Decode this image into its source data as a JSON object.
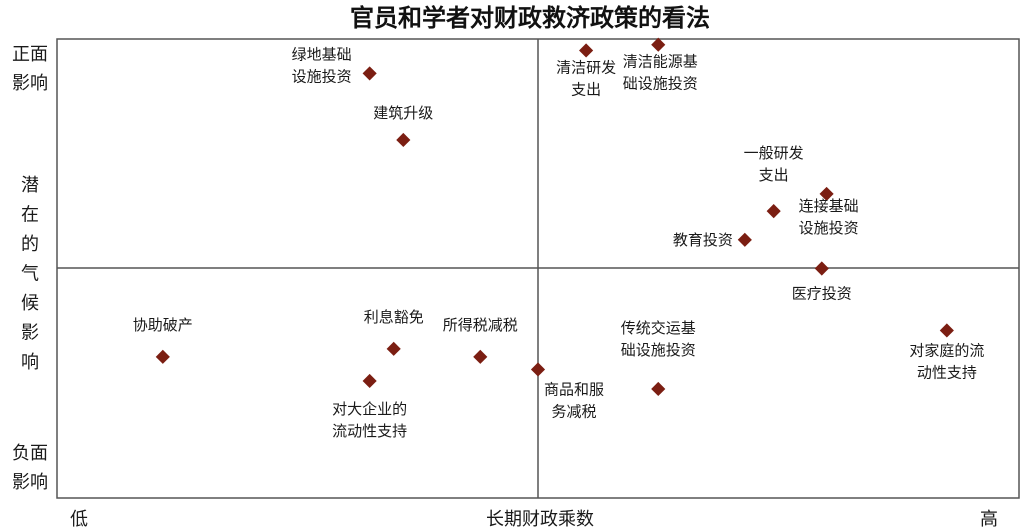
{
  "chart_data": {
    "type": "scatter",
    "title": "官员和学者对财政救济政策的看法",
    "xlabel": "长期财政乘数",
    "x_low_label": "低",
    "x_high_label": "高",
    "y_top_label": [
      "正面",
      "影响"
    ],
    "y_mid_label": [
      "潜",
      "在",
      "的",
      "气",
      "候",
      "影",
      "响"
    ],
    "y_bottom_label": [
      "负面",
      "影响"
    ],
    "xlim": [
      0,
      10
    ],
    "ylim": [
      -10,
      10
    ],
    "marker_color": "#7b1e12",
    "points": [
      {
        "x": 3.25,
        "y": 8.5,
        "label": [
          "绿地基础",
          "设施投资"
        ]
      },
      {
        "x": 3.6,
        "y": 5.6,
        "label": [
          "建筑升级"
        ]
      },
      {
        "x": 5.5,
        "y": 9.5,
        "label": [
          "清洁研发",
          "支出"
        ]
      },
      {
        "x": 6.25,
        "y": 9.75,
        "label": [
          "清洁能源基",
          "础设施投资"
        ]
      },
      {
        "x": 7.45,
        "y": 2.5,
        "label": [
          "一般研发",
          "支出"
        ]
      },
      {
        "x": 8.0,
        "y": 3.25,
        "label": [
          "连接基础",
          "设施投资"
        ]
      },
      {
        "x": 7.15,
        "y": 1.25,
        "label": [
          "教育投资"
        ]
      },
      {
        "x": 7.95,
        "y": 0.0,
        "label": [
          "医疗投资"
        ]
      },
      {
        "x": 1.1,
        "y": -3.85,
        "label": [
          "协助破产"
        ]
      },
      {
        "x": 3.5,
        "y": -3.5,
        "label": [
          "利息豁免"
        ]
      },
      {
        "x": 4.4,
        "y": -3.85,
        "label": [
          "所得税减税"
        ]
      },
      {
        "x": 3.25,
        "y": -4.9,
        "label": [
          "对大企业的",
          "流动性支持"
        ]
      },
      {
        "x": 5.0,
        "y": -4.4,
        "label": [
          "商品和服",
          "务减税"
        ]
      },
      {
        "x": 6.25,
        "y": -5.25,
        "label": [
          "传统交运基",
          "础设施投资"
        ]
      },
      {
        "x": 9.25,
        "y": -2.7,
        "label": [
          "对家庭的流",
          "动性支持"
        ]
      }
    ]
  }
}
